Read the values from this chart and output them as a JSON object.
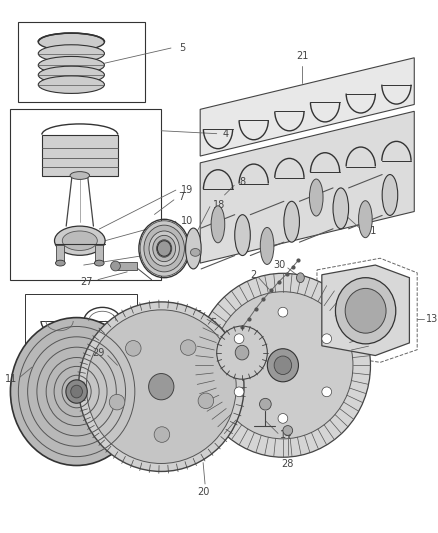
{
  "bg_color": "#ffffff",
  "fig_width": 4.38,
  "fig_height": 5.33,
  "dpi": 100,
  "line_color": "#555555",
  "text_color": "#444444",
  "label_fontsize": 7.0
}
